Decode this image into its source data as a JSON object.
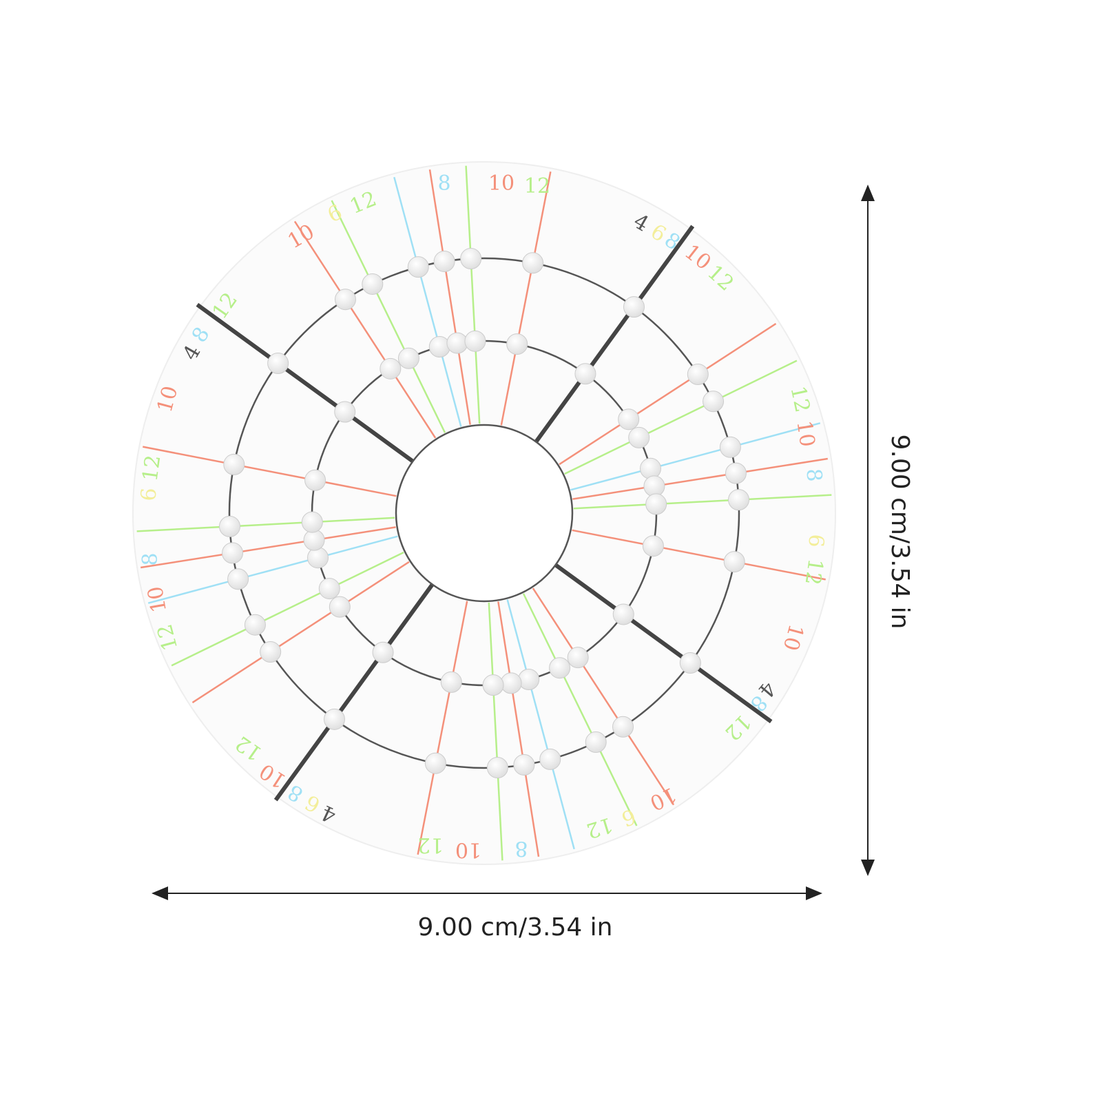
{
  "dimensions": {
    "width": "9.00 cm/3.54 in",
    "height": "9.00 cm/3.54 in"
  },
  "disc_labels": [
    "8",
    "10",
    "12",
    "10",
    "6",
    "12",
    "12",
    "8",
    "4",
    "10",
    "12",
    "6",
    "8",
    "10",
    "12",
    "4",
    "6",
    "8",
    "10",
    "12",
    "12",
    "10",
    "8",
    "6",
    "12",
    "10",
    "4",
    "8",
    "12",
    "10",
    "6",
    "12",
    "8",
    "10",
    "12",
    "12",
    "10",
    "8",
    "6",
    "4"
  ]
}
